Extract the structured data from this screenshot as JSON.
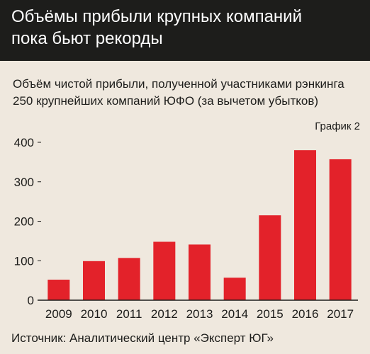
{
  "header": {
    "title": "Объёмы прибыли крупных компаний\nпока бьют рекорды"
  },
  "subtitle": "Объём чистой прибыли, полученной участниками рэнкинга\n250 крупнейших компаний ЮФО (за вычетом убытков)",
  "chart_label": "График 2",
  "source": "Источник: Аналитический центр «Эксперт ЮГ»",
  "colors": {
    "bar": "#e3222a",
    "header_bg": "#1d1d1b",
    "background": "#efe8de",
    "axis": "#1d1d1b"
  },
  "chart_data": {
    "type": "bar",
    "categories": [
      "2009",
      "2010",
      "2011",
      "2012",
      "2013",
      "2014",
      "2015",
      "2016",
      "2017"
    ],
    "values": [
      52,
      99,
      107,
      148,
      141,
      57,
      215,
      380,
      357
    ],
    "ylim": [
      0,
      400
    ],
    "yticks": [
      0,
      100,
      200,
      300,
      400
    ],
    "grid": false
  }
}
